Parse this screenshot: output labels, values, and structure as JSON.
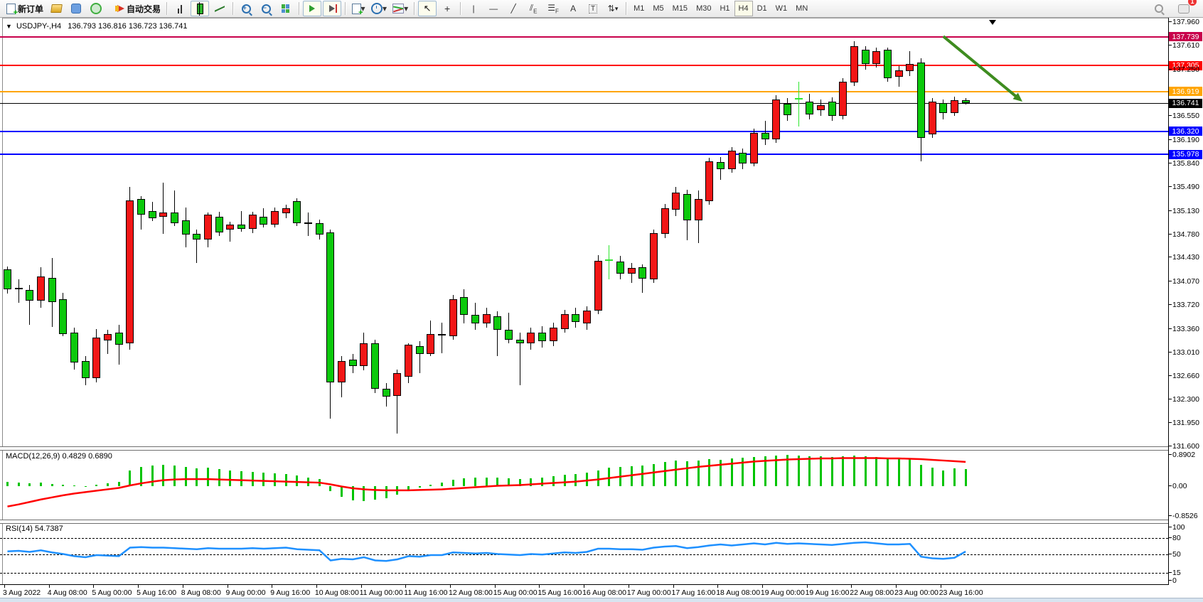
{
  "toolbar": {
    "new_order": "新订单",
    "auto_trading": "自动交易",
    "timeframes": [
      "M1",
      "M5",
      "M15",
      "M30",
      "H1",
      "H4",
      "D1",
      "W1",
      "MN"
    ],
    "active_timeframe": "H4",
    "notification_count": "1"
  },
  "chart_header": {
    "symbol": "USDJPY-,H4",
    "ohlc": "136.793 136.816 136.723 136.741"
  },
  "indicators": {
    "macd": {
      "label": "MACD(12,26,9)",
      "values": "0.4829 0.6890"
    },
    "rsi": {
      "label": "RSI(14)",
      "values": "54.7387"
    }
  },
  "chart_data": [
    {
      "type": "candlestick",
      "title": "USDJPY-,H4",
      "ylim": [
        131.6,
        137.96
      ],
      "y_ticks": [
        137.96,
        137.61,
        137.25,
        136.55,
        136.19,
        135.84,
        135.49,
        135.13,
        134.78,
        134.43,
        134.07,
        133.72,
        133.36,
        133.01,
        132.66,
        132.3,
        131.95,
        131.6
      ],
      "x_labels": [
        "3 Aug 2022",
        "4 Aug 08:00",
        "5 Aug 00:00",
        "5 Aug 16:00",
        "8 Aug 08:00",
        "9 Aug 00:00",
        "9 Aug 16:00",
        "10 Aug 08:00",
        "11 Aug 00:00",
        "11 Aug 16:00",
        "12 Aug 08:00",
        "15 Aug 00:00",
        "15 Aug 16:00",
        "16 Aug 08:00",
        "17 Aug 00:00",
        "17 Aug 16:00",
        "18 Aug 08:00",
        "19 Aug 00:00",
        "19 Aug 16:00",
        "22 Aug 08:00",
        "23 Aug 00:00",
        "23 Aug 16:00"
      ],
      "candles": [
        [
          134.25,
          134.3,
          133.89,
          133.95
        ],
        [
          133.95,
          134.1,
          133.75,
          133.96,
          "dj"
        ],
        [
          133.94,
          134.02,
          133.42,
          133.78
        ],
        [
          133.78,
          134.28,
          133.68,
          134.15
        ],
        [
          134.13,
          134.42,
          133.39,
          133.76
        ],
        [
          133.81,
          133.9,
          133.25,
          133.28
        ],
        [
          133.3,
          133.38,
          132.75,
          132.86
        ],
        [
          132.88,
          132.95,
          132.52,
          132.62
        ],
        [
          132.62,
          133.36,
          132.56,
          133.23
        ],
        [
          133.19,
          133.35,
          132.99,
          133.28
        ],
        [
          133.3,
          133.42,
          132.82,
          133.12
        ],
        [
          133.14,
          135.49,
          133.05,
          135.29
        ],
        [
          135.31,
          135.35,
          134.85,
          135.07
        ],
        [
          135.13,
          135.27,
          134.98,
          135.02
        ],
        [
          135.04,
          135.55,
          134.78,
          135.11
        ],
        [
          135.11,
          135.44,
          134.9,
          134.95
        ],
        [
          134.99,
          135.18,
          134.58,
          134.77
        ],
        [
          134.79,
          134.85,
          134.35,
          134.7
        ],
        [
          134.7,
          135.1,
          134.58,
          135.07
        ],
        [
          135.04,
          135.12,
          134.75,
          134.81
        ],
        [
          134.85,
          134.97,
          134.67,
          134.92
        ],
        [
          134.92,
          135.13,
          134.82,
          134.86
        ],
        [
          134.86,
          135.12,
          134.8,
          135.07
        ],
        [
          135.04,
          135.17,
          134.88,
          134.92
        ],
        [
          134.92,
          135.18,
          134.88,
          135.13
        ],
        [
          135.09,
          135.22,
          135.02,
          135.17
        ],
        [
          135.28,
          135.32,
          134.9,
          134.95
        ],
        [
          134.93,
          135.1,
          134.75,
          134.94,
          "dj"
        ],
        [
          134.94,
          135.0,
          134.7,
          134.78
        ],
        [
          134.81,
          134.85,
          132.02,
          132.56
        ],
        [
          132.56,
          132.95,
          132.34,
          132.88
        ],
        [
          132.9,
          132.98,
          132.7,
          132.8
        ],
        [
          132.8,
          133.3,
          132.74,
          133.15
        ],
        [
          133.15,
          133.2,
          132.4,
          132.46
        ],
        [
          132.46,
          132.55,
          132.2,
          132.35
        ],
        [
          132.36,
          132.75,
          131.79,
          132.7
        ],
        [
          132.64,
          133.15,
          132.55,
          133.12
        ],
        [
          133.1,
          133.18,
          132.7,
          132.98
        ],
        [
          132.99,
          133.49,
          132.95,
          133.28
        ],
        [
          133.26,
          133.45,
          133.0,
          133.27,
          "dj"
        ],
        [
          133.25,
          133.87,
          133.2,
          133.81
        ],
        [
          133.84,
          133.95,
          133.44,
          133.57
        ],
        [
          133.57,
          133.75,
          133.35,
          133.44
        ],
        [
          133.44,
          133.68,
          133.38,
          133.58
        ],
        [
          133.55,
          133.62,
          132.95,
          133.35
        ],
        [
          133.35,
          133.6,
          133.15,
          133.2
        ],
        [
          133.2,
          133.3,
          132.52,
          133.14
        ],
        [
          133.14,
          133.38,
          133.05,
          133.3
        ],
        [
          133.3,
          133.4,
          133.08,
          133.18
        ],
        [
          133.18,
          133.45,
          133.1,
          133.38
        ],
        [
          133.36,
          133.65,
          133.3,
          133.58
        ],
        [
          133.58,
          133.68,
          133.38,
          133.46
        ],
        [
          133.44,
          133.7,
          133.35,
          133.63
        ],
        [
          133.63,
          134.47,
          133.58,
          134.38
        ],
        [
          134.38,
          134.62,
          134.1,
          134.39,
          "lj"
        ],
        [
          134.37,
          134.45,
          134.1,
          134.19
        ],
        [
          134.19,
          134.35,
          134.05,
          134.27
        ],
        [
          134.28,
          134.33,
          133.9,
          134.11
        ],
        [
          134.1,
          134.85,
          134.05,
          134.8
        ],
        [
          134.78,
          135.23,
          134.72,
          135.17
        ],
        [
          135.15,
          135.49,
          135.05,
          135.4
        ],
        [
          135.38,
          135.45,
          134.69,
          134.99
        ],
        [
          134.99,
          135.43,
          134.65,
          135.31
        ],
        [
          135.28,
          135.92,
          135.22,
          135.87
        ],
        [
          135.86,
          135.94,
          135.6,
          135.75
        ],
        [
          135.75,
          136.08,
          135.7,
          136.03
        ],
        [
          136.0,
          136.06,
          135.75,
          135.84
        ],
        [
          135.84,
          136.36,
          135.8,
          136.3
        ],
        [
          136.3,
          136.48,
          136.12,
          136.2
        ],
        [
          136.2,
          136.86,
          136.15,
          136.8
        ],
        [
          136.74,
          136.82,
          136.48,
          136.56
        ],
        [
          136.8,
          137.07,
          136.39,
          136.81,
          "lj"
        ],
        [
          136.77,
          136.88,
          136.5,
          136.58
        ],
        [
          136.64,
          136.8,
          136.55,
          136.71
        ],
        [
          136.77,
          136.83,
          136.48,
          136.55
        ],
        [
          136.55,
          137.12,
          136.5,
          137.07
        ],
        [
          137.05,
          137.67,
          137.0,
          137.6
        ],
        [
          137.54,
          137.6,
          137.25,
          137.33
        ],
        [
          137.33,
          137.58,
          137.28,
          137.52
        ],
        [
          137.54,
          137.58,
          137.06,
          137.12
        ],
        [
          137.14,
          137.3,
          136.99,
          137.24
        ],
        [
          137.22,
          137.52,
          137.15,
          137.33
        ],
        [
          137.35,
          137.42,
          135.87,
          136.22
        ],
        [
          136.28,
          136.82,
          136.22,
          136.77
        ],
        [
          136.75,
          136.8,
          136.5,
          136.6
        ],
        [
          136.6,
          136.84,
          136.55,
          136.79
        ],
        [
          136.793,
          136.816,
          136.723,
          136.741
        ]
      ],
      "levels": [
        {
          "price": 137.739,
          "label": "137.739",
          "color": "#c8004b"
        },
        {
          "price": 137.305,
          "label": "137.305",
          "color": "#ff0000"
        },
        {
          "price": 136.919,
          "label": "136.919",
          "color": "#ffa500"
        },
        {
          "price": 136.741,
          "label": "136.741",
          "color": "#000000",
          "current": true
        },
        {
          "price": 136.32,
          "label": "136.320",
          "color": "#0000ff"
        },
        {
          "price": 135.978,
          "label": "135.978",
          "color": "#0000ff"
        }
      ],
      "annotations": [
        {
          "type": "arrow",
          "color": "#3e8c1f",
          "from_bar": 84,
          "from_price": 137.745,
          "to_bar": 91,
          "to_price": 136.78
        }
      ],
      "colors": {
        "bull": "#f21616",
        "bear": "#0cc90c",
        "doji": "#000000",
        "lime_doji": "#2ee62e"
      }
    },
    {
      "type": "bar",
      "name": "MACD(12,26,9)",
      "axis_labels": [
        "0.8902",
        "0.00",
        "-0.8526"
      ],
      "axis_values": [
        0.8902,
        0.0,
        -0.8526
      ],
      "histogram": [
        0.12,
        0.1,
        0.08,
        0.1,
        0.06,
        0.04,
        0.02,
        -0.02,
        0.05,
        0.08,
        0.12,
        0.45,
        0.55,
        0.58,
        0.6,
        0.58,
        0.55,
        0.5,
        0.52,
        0.48,
        0.45,
        0.42,
        0.4,
        0.38,
        0.36,
        0.35,
        0.3,
        0.25,
        0.2,
        -0.15,
        -0.3,
        -0.4,
        -0.42,
        -0.38,
        -0.35,
        -0.25,
        -0.15,
        -0.05,
        0.05,
        0.1,
        0.18,
        0.22,
        0.24,
        0.25,
        0.24,
        0.22,
        0.2,
        0.22,
        0.25,
        0.28,
        0.32,
        0.35,
        0.38,
        0.45,
        0.52,
        0.55,
        0.56,
        0.58,
        0.62,
        0.68,
        0.72,
        0.7,
        0.72,
        0.76,
        0.75,
        0.78,
        0.8,
        0.83,
        0.86,
        0.88,
        0.89,
        0.88,
        0.86,
        0.85,
        0.84,
        0.85,
        0.87,
        0.85,
        0.83,
        0.8,
        0.78,
        0.76,
        0.6,
        0.52,
        0.45,
        0.5,
        0.48
      ],
      "signal": [
        -0.58,
        -0.52,
        -0.45,
        -0.38,
        -0.32,
        -0.26,
        -0.21,
        -0.17,
        -0.13,
        -0.09,
        -0.05,
        0.02,
        0.08,
        0.13,
        0.17,
        0.19,
        0.2,
        0.2,
        0.2,
        0.19,
        0.18,
        0.17,
        0.16,
        0.15,
        0.14,
        0.13,
        0.12,
        0.11,
        0.1,
        0.05,
        -0.01,
        -0.06,
        -0.09,
        -0.11,
        -0.12,
        -0.12,
        -0.12,
        -0.11,
        -0.1,
        -0.09,
        -0.07,
        -0.05,
        -0.03,
        -0.01,
        0.01,
        0.02,
        0.03,
        0.05,
        0.07,
        0.09,
        0.11,
        0.13,
        0.16,
        0.19,
        0.23,
        0.27,
        0.31,
        0.35,
        0.39,
        0.43,
        0.47,
        0.51,
        0.55,
        0.58,
        0.61,
        0.64,
        0.67,
        0.7,
        0.72,
        0.74,
        0.76,
        0.77,
        0.78,
        0.79,
        0.79,
        0.8,
        0.8,
        0.8,
        0.8,
        0.79,
        0.79,
        0.78,
        0.77,
        0.75,
        0.73,
        0.71,
        0.69
      ],
      "colors": {
        "histogram": "#00c400",
        "signal": "#ff0000"
      }
    },
    {
      "type": "line",
      "name": "RSI(14)",
      "axis_labels": [
        "100",
        "80",
        "50",
        "15",
        "0"
      ],
      "axis_values": [
        100,
        80,
        50,
        15,
        0
      ],
      "dashed_levels": [
        80,
        50,
        15
      ],
      "values": [
        55,
        56,
        54,
        57,
        53,
        50,
        46,
        44,
        48,
        47,
        46,
        62,
        63,
        62,
        62,
        61,
        60,
        59,
        61,
        60,
        60,
        60,
        61,
        60,
        61,
        62,
        59,
        58,
        57,
        38,
        41,
        40,
        44,
        38,
        37,
        40,
        46,
        45,
        48,
        48,
        53,
        52,
        51,
        52,
        50,
        49,
        48,
        50,
        49,
        51,
        53,
        52,
        54,
        60,
        60,
        59,
        59,
        58,
        62,
        64,
        65,
        61,
        63,
        66,
        68,
        66,
        68,
        70,
        68,
        71,
        69,
        70,
        69,
        68,
        67,
        69,
        71,
        72,
        70,
        68,
        68,
        69,
        45,
        42,
        41,
        43,
        54.7
      ],
      "color": "#1e90ff"
    }
  ]
}
